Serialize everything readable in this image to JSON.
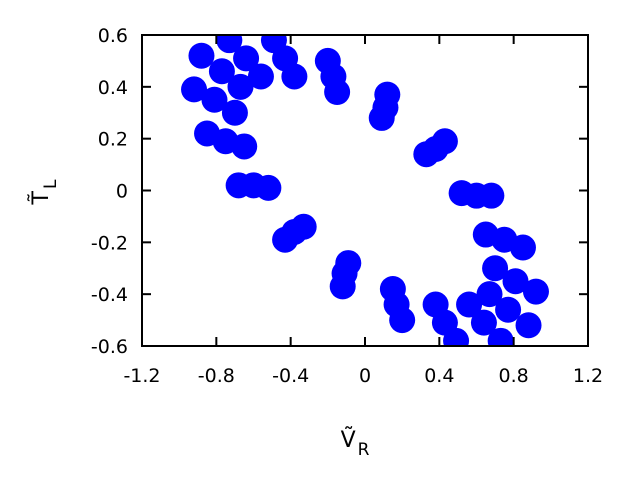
{
  "chart_data": {
    "type": "scatter",
    "x_label": {
      "main": "Ṽ",
      "sub": "R"
    },
    "y_label": {
      "main": "T̃",
      "sub": "L"
    },
    "color": "#0000ff",
    "xlim": [
      -1.2,
      1.2
    ],
    "xticks": [
      -1.2,
      -0.8,
      -0.4,
      0,
      0.4,
      0.8,
      1.2
    ],
    "ylim": [
      -0.6,
      0.6
    ],
    "yticks": [
      -0.6,
      -0.4,
      -0.2,
      0,
      0.2,
      0.4,
      0.6
    ],
    "x": [
      0.88,
      0.92,
      0.85,
      0.68,
      0.43,
      0.12,
      -0.2,
      -0.49,
      -0.73,
      -0.88,
      -0.92,
      -0.85,
      -0.68,
      -0.43,
      -0.12,
      0.2,
      0.49,
      0.73,
      0.77,
      0.81,
      0.75,
      0.6,
      0.38,
      0.11,
      -0.17,
      -0.43,
      -0.64,
      -0.77,
      -0.81,
      -0.75,
      -0.6,
      -0.38,
      -0.11,
      0.17,
      0.43,
      0.64,
      0.67,
      0.7,
      0.65,
      0.52,
      0.33,
      0.09,
      -0.15,
      -0.38,
      -0.56,
      -0.67,
      -0.7,
      -0.65,
      -0.52,
      -0.33,
      -0.09,
      0.15,
      0.38,
      0.56
    ],
    "y": [
      -0.52,
      -0.39,
      -0.22,
      -0.02,
      0.19,
      0.37,
      0.5,
      0.58,
      0.58,
      0.52,
      0.39,
      0.22,
      0.02,
      -0.19,
      -0.37,
      -0.5,
      -0.58,
      -0.58,
      -0.46,
      -0.35,
      -0.19,
      -0.02,
      0.16,
      0.32,
      0.44,
      0.51,
      0.51,
      0.46,
      0.35,
      0.19,
      0.02,
      -0.16,
      -0.32,
      -0.44,
      -0.51,
      -0.51,
      -0.4,
      -0.3,
      -0.17,
      -0.01,
      0.14,
      0.28,
      0.38,
      0.44,
      0.44,
      0.4,
      0.3,
      0.17,
      0.01,
      -0.14,
      -0.28,
      -0.38,
      -0.44,
      -0.44
    ]
  }
}
